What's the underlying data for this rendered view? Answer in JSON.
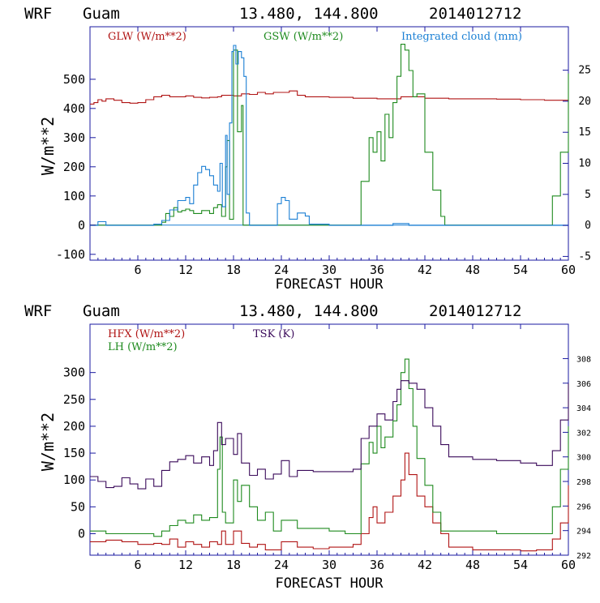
{
  "chart_data": [
    {
      "type": "line",
      "header": {
        "model": "WRF",
        "site": "Guam",
        "coords": "13.480, 144.800",
        "date": "2014012712"
      },
      "xlabel": "FORECAST HOUR",
      "ylabel": "W/m**2",
      "xlim": [
        0,
        60
      ],
      "ylim": [
        -120,
        680
      ],
      "y2lim": [
        -5.6,
        32
      ],
      "xticks": [
        6,
        12,
        18,
        24,
        30,
        36,
        42,
        48,
        54,
        60
      ],
      "yticks": [
        -100,
        0,
        100,
        200,
        300,
        400,
        500
      ],
      "y2ticks": [
        -5,
        0,
        5,
        10,
        15,
        20,
        25
      ],
      "legend": [
        {
          "label": "GLW (W/m**2)",
          "color": "#b01414"
        },
        {
          "label": "GSW (W/m**2)",
          "color": "#1e8a1e"
        },
        {
          "label": "Integrated cloud (mm)",
          "color": "#1a7fd4"
        }
      ],
      "series": [
        {
          "name": "GLW",
          "axis": "left",
          "color": "#b01414",
          "x": [
            0,
            0.5,
            1,
            1.5,
            2,
            3,
            4,
            5,
            6,
            7,
            8,
            9,
            10,
            11,
            12,
            13,
            14,
            15,
            16,
            16.5,
            17,
            18,
            19,
            20,
            21,
            22,
            23,
            24,
            25,
            26,
            27,
            28,
            30,
            33,
            36,
            39,
            42,
            45,
            48,
            51,
            54,
            57,
            60
          ],
          "y": [
            415,
            420,
            430,
            425,
            433,
            428,
            420,
            418,
            420,
            430,
            440,
            445,
            440,
            440,
            443,
            438,
            436,
            438,
            440,
            445,
            445,
            443,
            450,
            448,
            455,
            450,
            455,
            455,
            460,
            445,
            440,
            440,
            438,
            435,
            433,
            440,
            435,
            433,
            433,
            432,
            430,
            428,
            425
          ]
        },
        {
          "name": "GSW",
          "axis": "left",
          "color": "#1e8a1e",
          "x": [
            0,
            8.5,
            9,
            9.5,
            10,
            10.5,
            11,
            11.5,
            12,
            12.5,
            13,
            14,
            15,
            15.5,
            16,
            16.5,
            17,
            17.2,
            17.5,
            18,
            18.5,
            19,
            19.2,
            33,
            34,
            35,
            35.5,
            36,
            36.5,
            37,
            37.5,
            38,
            38.5,
            39,
            39.5,
            40,
            40.5,
            41,
            42,
            43,
            44,
            44.5,
            57,
            58,
            59,
            60
          ],
          "y": [
            0,
            0,
            10,
            40,
            30,
            60,
            45,
            50,
            55,
            50,
            40,
            50,
            40,
            60,
            70,
            30,
            200,
            290,
            20,
            600,
            320,
            410,
            0,
            0,
            150,
            300,
            250,
            320,
            220,
            380,
            300,
            420,
            510,
            620,
            600,
            530,
            440,
            450,
            250,
            120,
            30,
            0,
            0,
            100,
            250,
            520
          ]
        },
        {
          "name": "Integrated cloud",
          "axis": "right",
          "color": "#1a7fd4",
          "x": [
            0,
            1,
            2,
            3,
            6,
            8,
            9,
            10,
            11,
            12,
            12.5,
            13,
            13.5,
            14,
            14.5,
            15,
            15.5,
            16,
            16.3,
            16.6,
            17,
            17.2,
            17.5,
            17.8,
            18,
            18.3,
            18.6,
            19,
            19.3,
            19.6,
            20,
            23,
            23.5,
            24,
            24.5,
            25,
            26,
            27,
            27.5,
            30,
            36,
            38,
            40,
            44,
            60
          ],
          "y": [
            0,
            0.6,
            0,
            0,
            0,
            0.2,
            0.8,
            2.5,
            4.0,
            4.5,
            3.5,
            6.5,
            8.5,
            9.5,
            9.0,
            8.0,
            6.5,
            5.5,
            10.0,
            3.0,
            14.5,
            5.0,
            16.5,
            28.0,
            29.0,
            26.0,
            28.0,
            27.0,
            24.0,
            2.0,
            0,
            0,
            3.5,
            4.5,
            4.0,
            1.0,
            2.0,
            1.5,
            0.2,
            0,
            0,
            0.3,
            0,
            0,
            0
          ]
        }
      ]
    },
    {
      "type": "line",
      "header": {
        "model": "WRF",
        "site": "Guam",
        "coords": "13.480, 144.800",
        "date": "2014012712"
      },
      "xlabel": "FORECAST HOUR",
      "ylabel": "W/m**2",
      "xlim": [
        0,
        60
      ],
      "ylim": [
        -40,
        390
      ],
      "y2lim": [
        292,
        310.8
      ],
      "xticks": [
        6,
        12,
        18,
        24,
        30,
        36,
        42,
        48,
        54,
        60
      ],
      "yticks": [
        0,
        50,
        100,
        150,
        200,
        250,
        300
      ],
      "y2ticks": [
        292,
        294,
        296,
        298,
        300,
        302,
        304,
        306,
        308
      ],
      "legend": [
        {
          "label": "HFX (W/m**2)",
          "color": "#b01414"
        },
        {
          "label": "LH  (W/m**2)",
          "color": "#1e8a1e"
        },
        {
          "label": "TSK (K)",
          "color": "#3a0a5a"
        }
      ],
      "series": [
        {
          "name": "HFX",
          "axis": "left",
          "color": "#b01414",
          "x": [
            0,
            2,
            4,
            6,
            8,
            9,
            10,
            11,
            12,
            13,
            14,
            15,
            16,
            16.5,
            17,
            18,
            19,
            20,
            21,
            22,
            24,
            26,
            28,
            30,
            33,
            34,
            35,
            35.5,
            36,
            37,
            38,
            39,
            39.5,
            40,
            41,
            42,
            43,
            44,
            45,
            48,
            51,
            54,
            56,
            57,
            58,
            59,
            60
          ],
          "y": [
            -15,
            -12,
            -15,
            -20,
            -18,
            -20,
            -10,
            -25,
            -15,
            -20,
            -25,
            -15,
            -20,
            5,
            -20,
            5,
            -18,
            -25,
            -20,
            -30,
            -15,
            -25,
            -28,
            -25,
            -20,
            0,
            30,
            50,
            20,
            40,
            70,
            100,
            150,
            110,
            70,
            50,
            20,
            0,
            -25,
            -30,
            -30,
            -32,
            -30,
            -30,
            -10,
            20,
            90
          ]
        },
        {
          "name": "LH",
          "axis": "left",
          "color": "#1e8a1e",
          "x": [
            0,
            2,
            4,
            6,
            8,
            9,
            10,
            11,
            12,
            13,
            14,
            15,
            15.5,
            16,
            16.3,
            16.6,
            17,
            18,
            18.5,
            19,
            20,
            21,
            22,
            23,
            24,
            26,
            28,
            30,
            32,
            33,
            34,
            35,
            35.5,
            36,
            36.5,
            37,
            38,
            38.5,
            39,
            39.5,
            40,
            40.5,
            41,
            42,
            43,
            44,
            45,
            48,
            51,
            54,
            56,
            57,
            58,
            59,
            60
          ],
          "y": [
            5,
            0,
            0,
            0,
            -5,
            5,
            15,
            25,
            20,
            35,
            25,
            30,
            30,
            120,
            180,
            40,
            20,
            100,
            60,
            90,
            50,
            25,
            40,
            5,
            25,
            10,
            10,
            5,
            0,
            0,
            130,
            170,
            150,
            200,
            160,
            180,
            210,
            240,
            300,
            325,
            270,
            200,
            140,
            90,
            40,
            5,
            5,
            5,
            0,
            0,
            0,
            0,
            50,
            120,
            200
          ]
        },
        {
          "name": "TSK",
          "axis": "right",
          "color": "#3a0a5a",
          "x": [
            0,
            1,
            2,
            3,
            4,
            5,
            6,
            7,
            8,
            9,
            10,
            11,
            12,
            13,
            14,
            15,
            15.5,
            16,
            16.5,
            17,
            18,
            18.5,
            19,
            20,
            21,
            22,
            23,
            24,
            25,
            26,
            27,
            28,
            30,
            33,
            34,
            35,
            36,
            37,
            38,
            38.5,
            39,
            40,
            41,
            42,
            43,
            44,
            45,
            48,
            51,
            54,
            56,
            57,
            58,
            59,
            60
          ],
          "y": [
            298.4,
            298.0,
            297.5,
            297.6,
            298.3,
            297.8,
            297.4,
            298.2,
            297.6,
            298.9,
            299.6,
            299.8,
            300.1,
            299.5,
            300.0,
            299.3,
            300.5,
            302.8,
            301.0,
            301.5,
            300.2,
            301.9,
            299.5,
            298.5,
            299.0,
            298.2,
            298.6,
            299.7,
            298.4,
            298.9,
            298.9,
            298.8,
            298.8,
            299.0,
            301.5,
            302.5,
            303.5,
            303.0,
            304.5,
            305.5,
            306.2,
            306.0,
            305.5,
            304.0,
            302.5,
            301.0,
            300.0,
            299.8,
            299.7,
            299.5,
            299.3,
            299.3,
            300.5,
            303.0,
            306.0
          ]
        }
      ]
    }
  ]
}
